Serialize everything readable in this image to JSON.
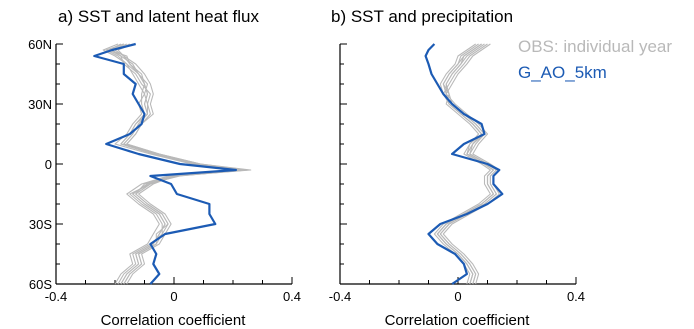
{
  "figure": {
    "colors": {
      "obs": "#b9b9b9",
      "model": "#1c5bb4",
      "axis": "#000000"
    }
  },
  "legend": {
    "obs_label": "OBS: individual year",
    "model_label": "G_AO_5km"
  },
  "chart_data": [
    {
      "type": "line",
      "title": "a) SST and latent heat flux",
      "xlabel": "Correlation coefficient",
      "ylabel": "",
      "xlim": [
        -0.4,
        0.4
      ],
      "ylim": [
        -60,
        60
      ],
      "xticks": [
        -0.4,
        0,
        0.4
      ],
      "xtick_labels": [
        "-0.4",
        "0",
        "0.4"
      ],
      "yticks": [
        60,
        30,
        0,
        -30,
        -60
      ],
      "ytick_labels": [
        "60N",
        "30N",
        "0",
        "30S",
        "60S"
      ],
      "grid": false,
      "orientation": "vertical-profile",
      "y_latitude": [
        60,
        57,
        54,
        50,
        45,
        40,
        35,
        30,
        25,
        20,
        15,
        10,
        5,
        0,
        -3,
        -6,
        -10,
        -15,
        -20,
        -25,
        -30,
        -35,
        -40,
        -45,
        -50,
        -55,
        -60
      ],
      "series": [
        {
          "name": "G_AO_5km",
          "role": "model",
          "values": [
            -0.13,
            -0.21,
            -0.27,
            -0.17,
            -0.17,
            -0.13,
            -0.14,
            -0.12,
            -0.1,
            -0.11,
            -0.15,
            -0.23,
            -0.12,
            0.02,
            0.21,
            -0.08,
            -0.01,
            0.01,
            0.12,
            0.12,
            0.14,
            -0.03,
            -0.08,
            -0.06,
            -0.07,
            -0.05,
            -0.08
          ]
        },
        {
          "role": "obs",
          "values": [
            -0.17,
            -0.23,
            -0.19,
            -0.16,
            -0.12,
            -0.1,
            -0.09,
            -0.1,
            -0.09,
            -0.12,
            -0.14,
            -0.17,
            -0.06,
            0.08,
            0.25,
            0.0,
            -0.09,
            -0.14,
            -0.1,
            -0.05,
            -0.03,
            -0.05,
            -0.07,
            -0.13,
            -0.12,
            -0.16,
            -0.18
          ]
        },
        {
          "role": "obs",
          "values": [
            -0.15,
            -0.2,
            -0.17,
            -0.15,
            -0.11,
            -0.1,
            -0.11,
            -0.11,
            -0.1,
            -0.13,
            -0.15,
            -0.18,
            -0.07,
            0.07,
            0.24,
            -0.01,
            -0.1,
            -0.13,
            -0.09,
            -0.04,
            -0.02,
            -0.06,
            -0.06,
            -0.12,
            -0.11,
            -0.15,
            -0.17
          ]
        },
        {
          "role": "obs",
          "values": [
            -0.18,
            -0.22,
            -0.18,
            -0.17,
            -0.13,
            -0.11,
            -0.08,
            -0.09,
            -0.08,
            -0.11,
            -0.13,
            -0.16,
            -0.05,
            0.09,
            0.26,
            0.01,
            -0.08,
            -0.15,
            -0.11,
            -0.06,
            -0.04,
            -0.04,
            -0.08,
            -0.14,
            -0.13,
            -0.17,
            -0.19
          ]
        },
        {
          "role": "obs",
          "values": [
            -0.16,
            -0.21,
            -0.18,
            -0.14,
            -0.12,
            -0.09,
            -0.1,
            -0.12,
            -0.11,
            -0.14,
            -0.16,
            -0.2,
            -0.08,
            0.06,
            0.22,
            -0.02,
            -0.11,
            -0.16,
            -0.12,
            -0.07,
            -0.05,
            -0.07,
            -0.09,
            -0.15,
            -0.14,
            -0.18,
            -0.2
          ]
        },
        {
          "role": "obs",
          "values": [
            -0.19,
            -0.24,
            -0.2,
            -0.16,
            -0.14,
            -0.12,
            -0.1,
            -0.09,
            -0.09,
            -0.12,
            -0.14,
            -0.17,
            -0.06,
            0.07,
            0.23,
            0.0,
            -0.07,
            -0.12,
            -0.08,
            -0.03,
            -0.01,
            -0.03,
            -0.05,
            -0.11,
            -0.1,
            -0.14,
            -0.16
          ]
        },
        {
          "role": "obs",
          "values": [
            -0.17,
            -0.22,
            -0.16,
            -0.15,
            -0.12,
            -0.1,
            -0.09,
            -0.1,
            -0.09,
            -0.13,
            -0.15,
            -0.18,
            -0.06,
            0.08,
            0.24,
            0.02,
            -0.09,
            -0.14,
            -0.1,
            -0.05,
            -0.03,
            -0.05,
            -0.07,
            -0.13,
            -0.12,
            -0.16,
            -0.18
          ]
        },
        {
          "role": "obs",
          "values": [
            -0.14,
            -0.19,
            -0.17,
            -0.13,
            -0.1,
            -0.08,
            -0.07,
            -0.08,
            -0.07,
            -0.11,
            -0.13,
            -0.16,
            -0.05,
            0.09,
            0.25,
            0.01,
            -0.08,
            -0.13,
            -0.09,
            -0.04,
            -0.02,
            -0.04,
            -0.06,
            -0.12,
            -0.11,
            -0.15,
            -0.17
          ]
        }
      ]
    },
    {
      "type": "line",
      "title": "b) SST and precipitation",
      "xlabel": "Correlation coefficient",
      "ylabel": "",
      "xlim": [
        -0.4,
        0.4
      ],
      "ylim": [
        -60,
        60
      ],
      "xticks": [
        -0.4,
        0,
        0.4
      ],
      "xtick_labels": [
        "-0.4",
        "0",
        "0.4"
      ],
      "grid": false,
      "orientation": "vertical-profile",
      "y_latitude": [
        60,
        57,
        54,
        50,
        45,
        40,
        35,
        30,
        25,
        20,
        15,
        10,
        5,
        0,
        -3,
        -6,
        -10,
        -15,
        -20,
        -25,
        -30,
        -35,
        -40,
        -45,
        -50,
        -55,
        -60
      ],
      "series": [
        {
          "name": "G_AO_5km",
          "role": "model",
          "values": [
            -0.08,
            -0.1,
            -0.11,
            -0.1,
            -0.09,
            -0.07,
            -0.05,
            -0.02,
            0.02,
            0.08,
            0.09,
            0.02,
            -0.02,
            0.1,
            0.14,
            0.12,
            0.12,
            0.15,
            0.1,
            0.03,
            -0.06,
            -0.1,
            -0.07,
            -0.01,
            0.02,
            0.03,
            -0.02
          ]
        },
        {
          "role": "obs",
          "values": [
            0.08,
            0.05,
            0.02,
            0.01,
            -0.02,
            -0.04,
            -0.04,
            -0.03,
            0.01,
            0.05,
            0.08,
            0.05,
            0.03,
            0.09,
            0.12,
            0.1,
            0.1,
            0.12,
            0.08,
            0.02,
            -0.04,
            -0.07,
            -0.04,
            0.0,
            0.03,
            0.05,
            0.04
          ]
        },
        {
          "role": "obs",
          "values": [
            0.1,
            0.07,
            0.04,
            0.02,
            -0.01,
            -0.03,
            -0.05,
            -0.02,
            0.02,
            0.06,
            0.09,
            0.06,
            0.04,
            0.1,
            0.13,
            0.11,
            0.11,
            0.13,
            0.09,
            0.03,
            -0.03,
            -0.06,
            -0.03,
            0.01,
            0.04,
            0.06,
            0.05
          ]
        },
        {
          "role": "obs",
          "values": [
            0.07,
            0.04,
            0.01,
            0.0,
            -0.03,
            -0.05,
            -0.03,
            -0.04,
            0.0,
            0.04,
            0.07,
            0.04,
            0.02,
            0.08,
            0.11,
            0.09,
            0.09,
            0.11,
            0.07,
            0.01,
            -0.05,
            -0.08,
            -0.05,
            -0.01,
            0.02,
            0.04,
            0.03
          ]
        },
        {
          "role": "obs",
          "values": [
            0.11,
            0.08,
            0.05,
            0.03,
            0.0,
            -0.02,
            -0.04,
            -0.01,
            0.03,
            0.07,
            0.1,
            0.07,
            0.05,
            0.11,
            0.14,
            0.12,
            0.12,
            0.14,
            0.1,
            0.04,
            -0.02,
            -0.05,
            -0.02,
            0.02,
            0.05,
            0.07,
            0.06
          ]
        },
        {
          "role": "obs",
          "values": [
            0.06,
            0.03,
            0.0,
            -0.01,
            -0.04,
            -0.06,
            -0.05,
            -0.03,
            0.01,
            0.05,
            0.08,
            0.04,
            0.03,
            0.09,
            0.12,
            0.1,
            0.1,
            0.12,
            0.08,
            0.02,
            -0.04,
            -0.07,
            -0.04,
            0.0,
            0.03,
            0.05,
            0.04
          ]
        },
        {
          "role": "obs",
          "values": [
            0.09,
            0.06,
            0.03,
            0.01,
            -0.02,
            -0.04,
            -0.03,
            -0.02,
            0.02,
            0.06,
            0.09,
            0.05,
            0.04,
            0.1,
            0.13,
            0.11,
            0.11,
            0.13,
            0.09,
            0.03,
            -0.03,
            -0.06,
            -0.03,
            0.01,
            0.04,
            0.06,
            0.05
          ]
        },
        {
          "role": "obs",
          "values": [
            0.08,
            0.05,
            0.02,
            0.0,
            -0.03,
            -0.05,
            -0.04,
            -0.03,
            0.01,
            0.05,
            0.08,
            0.05,
            0.03,
            0.09,
            0.12,
            0.1,
            0.1,
            0.12,
            0.08,
            0.02,
            -0.04,
            -0.07,
            -0.04,
            0.0,
            0.03,
            0.05,
            0.04
          ]
        }
      ]
    }
  ]
}
